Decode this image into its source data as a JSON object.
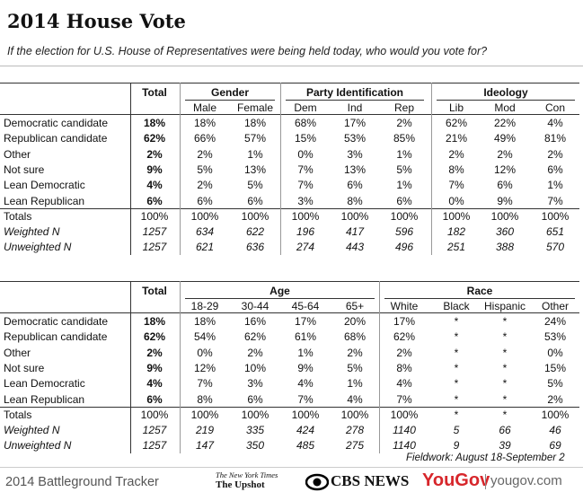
{
  "header": {
    "title": "2014 House Vote",
    "question": "If the election for U.S. House of Representatives were being held today, who would you vote for?"
  },
  "tables": [
    {
      "total_label": "Total",
      "groups": [
        {
          "label": "Gender",
          "columns": [
            "Male",
            "Female"
          ]
        },
        {
          "label": "Party Identification",
          "columns": [
            "Dem",
            "Ind",
            "Rep"
          ]
        },
        {
          "label": "Ideology",
          "columns": [
            "Lib",
            "Mod",
            "Con"
          ]
        }
      ],
      "rows": [
        {
          "label": "Democratic candidate",
          "total": "18%",
          "cells": [
            "18%",
            "18%",
            "68%",
            "17%",
            "2%",
            "62%",
            "22%",
            "4%"
          ]
        },
        {
          "label": "Republican candidate",
          "total": "62%",
          "cells": [
            "66%",
            "57%",
            "15%",
            "53%",
            "85%",
            "21%",
            "49%",
            "81%"
          ]
        },
        {
          "label": "Other",
          "total": "2%",
          "cells": [
            "2%",
            "1%",
            "0%",
            "3%",
            "1%",
            "2%",
            "2%",
            "2%"
          ]
        },
        {
          "label": "Not sure",
          "total": "9%",
          "cells": [
            "5%",
            "13%",
            "7%",
            "13%",
            "5%",
            "8%",
            "12%",
            "6%"
          ]
        },
        {
          "label": "Lean Democratic",
          "total": "4%",
          "cells": [
            "2%",
            "5%",
            "7%",
            "6%",
            "1%",
            "7%",
            "6%",
            "1%"
          ]
        },
        {
          "label": "Lean Republican",
          "total": "6%",
          "cells": [
            "6%",
            "6%",
            "3%",
            "8%",
            "6%",
            "0%",
            "9%",
            "7%"
          ]
        },
        {
          "label": "Totals",
          "total": "100%",
          "cells": [
            "100%",
            "100%",
            "100%",
            "100%",
            "100%",
            "100%",
            "100%",
            "100%"
          ]
        },
        {
          "label": "Weighted N",
          "total": "1257",
          "cells": [
            "634",
            "622",
            "196",
            "417",
            "596",
            "182",
            "360",
            "651"
          ]
        },
        {
          "label": "Unweighted N",
          "total": "1257",
          "cells": [
            "621",
            "636",
            "274",
            "443",
            "496",
            "251",
            "388",
            "570"
          ]
        }
      ]
    },
    {
      "total_label": "Total",
      "groups": [
        {
          "label": "Age",
          "columns": [
            "18-29",
            "30-44",
            "45-64",
            "65+"
          ]
        },
        {
          "label": "Race",
          "columns": [
            "White",
            "Black",
            "Hispanic",
            "Other"
          ]
        }
      ],
      "rows": [
        {
          "label": "Democratic candidate",
          "total": "18%",
          "cells": [
            "18%",
            "16%",
            "17%",
            "20%",
            "17%",
            "*",
            "*",
            "24%"
          ]
        },
        {
          "label": "Republican candidate",
          "total": "62%",
          "cells": [
            "54%",
            "62%",
            "61%",
            "68%",
            "62%",
            "*",
            "*",
            "53%"
          ]
        },
        {
          "label": "Other",
          "total": "2%",
          "cells": [
            "0%",
            "2%",
            "1%",
            "2%",
            "2%",
            "*",
            "*",
            "0%"
          ]
        },
        {
          "label": "Not sure",
          "total": "9%",
          "cells": [
            "12%",
            "10%",
            "9%",
            "5%",
            "8%",
            "*",
            "*",
            "15%"
          ]
        },
        {
          "label": "Lean Democratic",
          "total": "4%",
          "cells": [
            "7%",
            "3%",
            "4%",
            "1%",
            "4%",
            "*",
            "*",
            "5%"
          ]
        },
        {
          "label": "Lean Republican",
          "total": "6%",
          "cells": [
            "8%",
            "6%",
            "7%",
            "4%",
            "7%",
            "*",
            "*",
            "2%"
          ]
        },
        {
          "label": "Totals",
          "total": "100%",
          "cells": [
            "100%",
            "100%",
            "100%",
            "100%",
            "100%",
            "*",
            "*",
            "100%"
          ]
        },
        {
          "label": "Weighted N",
          "total": "1257",
          "cells": [
            "219",
            "335",
            "424",
            "278",
            "1140",
            "5",
            "66",
            "46"
          ]
        },
        {
          "label": "Unweighted N",
          "total": "1257",
          "cells": [
            "147",
            "350",
            "485",
            "275",
            "1140",
            "9",
            "39",
            "69"
          ]
        }
      ]
    }
  ],
  "fieldwork": "Fieldwork: August 18-September 2",
  "footer": {
    "tracker": "2014 Battleground Tracker",
    "nyt": "The New York Times",
    "upshot": "The Upshot",
    "cbs": "CBS NEWS",
    "yougov": "YouGov",
    "url": "yougov.com"
  }
}
